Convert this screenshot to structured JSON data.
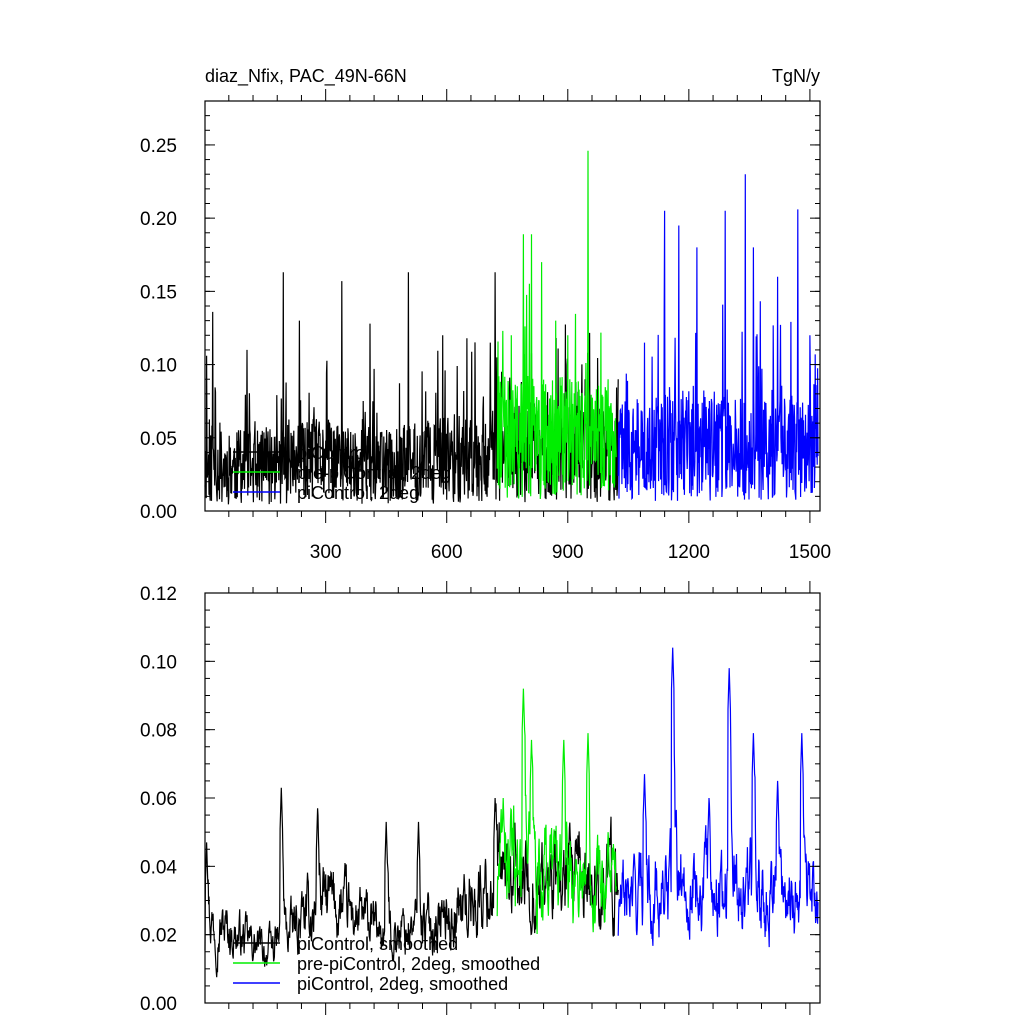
{
  "chart_data": [
    {
      "type": "line",
      "title_left": "diaz_Nfix, PAC_49N-66N",
      "title_right": "TgN/y",
      "xlim": [
        1,
        1525
      ],
      "ylim": [
        0,
        0.28
      ],
      "x_ticks": [
        "300",
        "600",
        "900",
        "1200",
        "1500"
      ],
      "y_ticks": [
        "0.00",
        "0.05",
        "0.10",
        "0.15",
        "0.20",
        "0.25"
      ],
      "legend": [
        "piControl",
        "pre-piControl, 2deg",
        "piControl, 2deg"
      ],
      "legend_position": "lower-left",
      "grid": false,
      "series": [
        {
          "name": "piControl",
          "color": "#000000",
          "x_range": [
            1,
            1025
          ],
          "approx_envelope": [
            [
              1,
              0.03
            ],
            [
              150,
              0.03
            ],
            [
              300,
              0.035
            ],
            [
              450,
              0.03
            ],
            [
              600,
              0.035
            ],
            [
              720,
              0.04
            ],
            [
              1025,
              0.04
            ]
          ],
          "peaks": [
            [
              5,
              0.106
            ],
            [
              20,
              0.136
            ],
            [
              105,
              0.11
            ],
            [
              195,
              0.163
            ],
            [
              235,
              0.13
            ],
            [
              340,
              0.157
            ],
            [
              410,
              0.128
            ],
            [
              505,
              0.163
            ],
            [
              590,
              0.12
            ],
            [
              650,
              0.118
            ],
            [
              720,
              0.163
            ],
            [
              1025,
              0.09
            ]
          ]
        },
        {
          "name": "pre-piControl, 2deg",
          "color": "#00ee00",
          "x_range": [
            725,
            1020
          ],
          "approx_envelope": [
            [
              725,
              0.05
            ],
            [
              870,
              0.05
            ],
            [
              1020,
              0.045
            ]
          ],
          "peaks": [
            [
              760,
              0.12
            ],
            [
              790,
              0.189
            ],
            [
              810,
              0.189
            ],
            [
              835,
              0.17
            ],
            [
              870,
              0.13
            ],
            [
              900,
              0.12
            ],
            [
              950,
              0.246
            ],
            [
              1000,
              0.09
            ]
          ]
        },
        {
          "name": "piControl, 2deg",
          "color": "#0000ff",
          "x_range": [
            1025,
            1520
          ],
          "approx_envelope": [
            [
              1025,
              0.04
            ],
            [
              1200,
              0.045
            ],
            [
              1400,
              0.045
            ],
            [
              1520,
              0.04
            ]
          ],
          "peaks": [
            [
              1090,
              0.115
            ],
            [
              1140,
              0.205
            ],
            [
              1175,
              0.195
            ],
            [
              1220,
              0.18
            ],
            [
              1290,
              0.205
            ],
            [
              1340,
              0.23
            ],
            [
              1360,
              0.18
            ],
            [
              1420,
              0.16
            ],
            [
              1470,
              0.206
            ],
            [
              1500,
              0.12
            ]
          ]
        }
      ]
    },
    {
      "type": "line",
      "xlim": [
        1,
        1525
      ],
      "ylim": [
        0,
        0.12
      ],
      "y_ticks": [
        "0.00",
        "0.02",
        "0.04",
        "0.06",
        "0.08",
        "0.10",
        "0.12"
      ],
      "legend": [
        "piControl, smoothed",
        "pre-piControl, 2deg, smoothed",
        "piControl, 2deg, smoothed"
      ],
      "legend_position": "lower-left",
      "grid": false,
      "series": [
        {
          "name": "piControl, smoothed",
          "color": "#000000",
          "x_range": [
            1,
            1025
          ],
          "approx_envelope": [
            [
              1,
              0.025
            ],
            [
              150,
              0.015
            ],
            [
              300,
              0.03
            ],
            [
              450,
              0.02
            ],
            [
              600,
              0.025
            ],
            [
              720,
              0.035
            ],
            [
              1025,
              0.035
            ]
          ],
          "peaks": [
            [
              5,
              0.047
            ],
            [
              190,
              0.063
            ],
            [
              280,
              0.057
            ],
            [
              450,
              0.053
            ],
            [
              530,
              0.053
            ],
            [
              720,
              0.06
            ]
          ]
        },
        {
          "name": "pre-piControl, 2deg, smoothed",
          "color": "#00ee00",
          "x_range": [
            725,
            1020
          ],
          "approx_envelope": [
            [
              725,
              0.04
            ],
            [
              870,
              0.04
            ],
            [
              1020,
              0.035
            ]
          ],
          "peaks": [
            [
              740,
              0.06
            ],
            [
              790,
              0.092
            ],
            [
              810,
              0.077
            ],
            [
              890,
              0.077
            ],
            [
              950,
              0.079
            ],
            [
              1000,
              0.05
            ]
          ]
        },
        {
          "name": "piControl, 2deg, smoothed",
          "color": "#0000ff",
          "x_range": [
            1025,
            1520
          ],
          "approx_envelope": [
            [
              1025,
              0.03
            ],
            [
              1200,
              0.035
            ],
            [
              1400,
              0.035
            ],
            [
              1520,
              0.03
            ]
          ],
          "peaks": [
            [
              1090,
              0.067
            ],
            [
              1160,
              0.104
            ],
            [
              1250,
              0.06
            ],
            [
              1300,
              0.098
            ],
            [
              1360,
              0.079
            ],
            [
              1420,
              0.065
            ],
            [
              1480,
              0.079
            ]
          ]
        }
      ]
    }
  ]
}
